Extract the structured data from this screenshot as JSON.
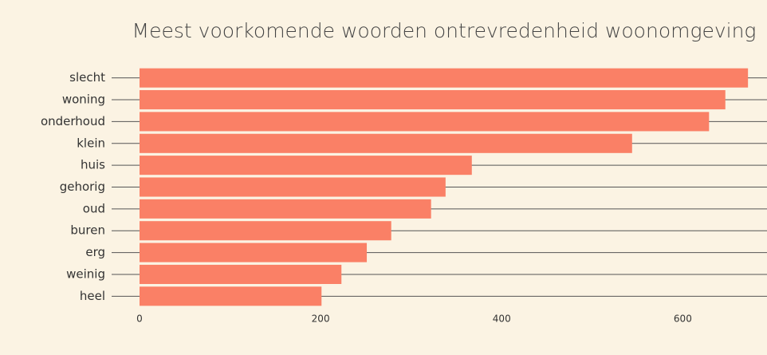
{
  "chart_data": {
    "type": "barh",
    "title": "Meest voorkomende woorden ontrevredenheid woonomgeving",
    "categories": [
      "slecht",
      "woning",
      "onderhoud",
      "klein",
      "huis",
      "gehorig",
      "oud",
      "buren",
      "erg",
      "weinig",
      "heel"
    ],
    "values": [
      672,
      647,
      629,
      544,
      367,
      338,
      322,
      278,
      251,
      223,
      201
    ],
    "color": "#fa8066",
    "xlim": [
      0,
      693
    ],
    "xticks": [
      0,
      200,
      400,
      600
    ],
    "grid": true
  }
}
